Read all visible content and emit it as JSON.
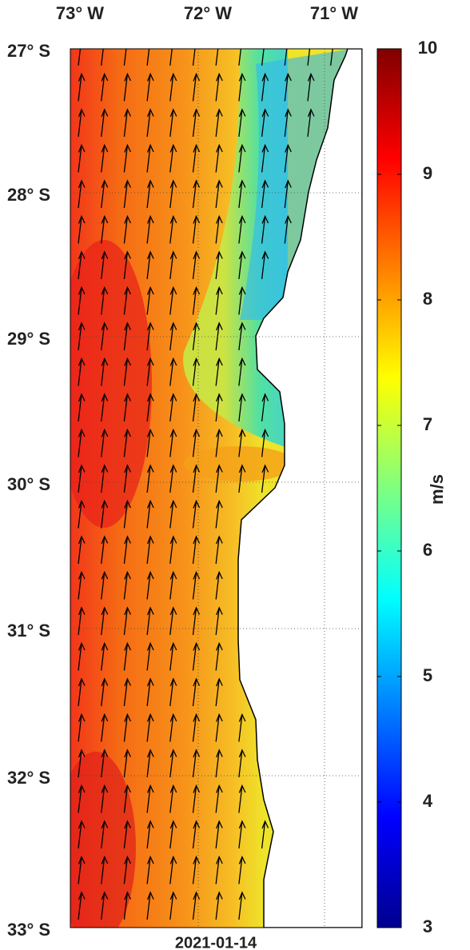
{
  "map": {
    "lon_labels": [
      "73° W",
      "72° W",
      "71° W"
    ],
    "lat_labels": [
      "27° S",
      "28° S",
      "29° S",
      "30° S",
      "31° S",
      "32° S",
      "33° S"
    ],
    "date": "2021-01-14",
    "colorbar": {
      "label": "m/s",
      "range": [
        3,
        10
      ],
      "ticks": [
        3,
        4,
        5,
        6,
        7,
        8,
        9,
        10
      ]
    }
  }
}
